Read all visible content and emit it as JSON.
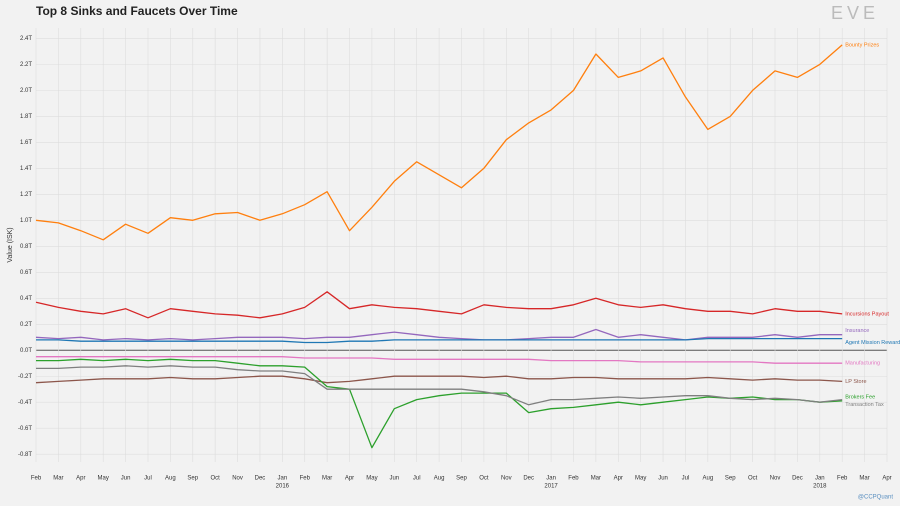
{
  "chart_data": {
    "type": "line",
    "title": "Top 8 Sinks and Faucets Over Time",
    "ylabel": "Value (ISK)",
    "logo": "EVE",
    "credit": "@CCPQuant",
    "categories": [
      "Feb",
      "Mar",
      "Apr",
      "May",
      "Jun",
      "Jul",
      "Aug",
      "Sep",
      "Oct",
      "Nov",
      "Dec",
      "Jan",
      "Feb",
      "Mar",
      "Apr",
      "May",
      "Jun",
      "Jul",
      "Aug",
      "Sep",
      "Oct",
      "Nov",
      "Dec",
      "Jan",
      "Feb",
      "Mar",
      "Apr",
      "May",
      "Jun",
      "Jul",
      "Aug",
      "Sep",
      "Oct",
      "Nov",
      "Dec",
      "Jan",
      "Feb",
      "Mar",
      "Apr"
    ],
    "years": [
      {
        "index": 11,
        "label": "2016"
      },
      {
        "index": 23,
        "label": "2017"
      },
      {
        "index": 35,
        "label": "2018"
      }
    ],
    "ylim": [
      -0.86,
      2.48
    ],
    "yticks": [
      {
        "value": -0.8,
        "label": "-0.8T"
      },
      {
        "value": -0.6,
        "label": "-0.6T"
      },
      {
        "value": -0.4,
        "label": "-0.4T"
      },
      {
        "value": -0.2,
        "label": "-0.2T"
      },
      {
        "value": 0,
        "label": "0.0T"
      },
      {
        "value": 0.2,
        "label": "0.2T"
      },
      {
        "value": 0.4,
        "label": "0.4T"
      },
      {
        "value": 0.6,
        "label": "0.6T"
      },
      {
        "value": 0.8,
        "label": "0.8T"
      },
      {
        "value": 1.0,
        "label": "1.0T"
      },
      {
        "value": 1.2,
        "label": "1.2T"
      },
      {
        "value": 1.4,
        "label": "1.4T"
      },
      {
        "value": 1.6,
        "label": "1.6T"
      },
      {
        "value": 1.8,
        "label": "1.8T"
      },
      {
        "value": 2.0,
        "label": "2.0T"
      },
      {
        "value": 2.2,
        "label": "2.2T"
      },
      {
        "value": 2.4,
        "label": "2.4T"
      }
    ],
    "grid": true,
    "series": [
      {
        "name": "Bounty Prizes",
        "color": "#ff7f0e",
        "values": [
          1.0,
          0.98,
          0.92,
          0.85,
          0.97,
          0.9,
          1.02,
          1.0,
          1.05,
          1.06,
          1.0,
          1.05,
          1.12,
          1.22,
          0.92,
          1.1,
          1.3,
          1.45,
          1.35,
          1.25,
          1.4,
          1.62,
          1.75,
          1.85,
          2.0,
          2.28,
          2.1,
          2.15,
          2.25,
          1.95,
          1.7,
          1.8,
          2.0,
          2.15,
          2.1,
          2.2,
          2.35,
          null,
          null
        ]
      },
      {
        "name": "Incursions Payout",
        "color": "#d62728",
        "values": [
          0.37,
          0.33,
          0.3,
          0.28,
          0.32,
          0.25,
          0.32,
          0.3,
          0.28,
          0.27,
          0.25,
          0.28,
          0.33,
          0.45,
          0.32,
          0.35,
          0.33,
          0.32,
          0.3,
          0.28,
          0.35,
          0.33,
          0.32,
          0.32,
          0.35,
          0.4,
          0.35,
          0.33,
          0.35,
          0.32,
          0.3,
          0.3,
          0.28,
          0.32,
          0.3,
          0.3,
          0.28,
          null,
          null
        ]
      },
      {
        "name": "Insurance",
        "color": "#9467bd",
        "values": [
          0.1,
          0.09,
          0.1,
          0.08,
          0.09,
          0.08,
          0.09,
          0.08,
          0.09,
          0.1,
          0.1,
          0.1,
          0.09,
          0.1,
          0.1,
          0.12,
          0.14,
          0.12,
          0.1,
          0.09,
          0.08,
          0.08,
          0.09,
          0.1,
          0.1,
          0.16,
          0.1,
          0.12,
          0.1,
          0.08,
          0.1,
          0.1,
          0.1,
          0.12,
          0.1,
          0.12,
          0.12,
          null,
          null
        ]
      },
      {
        "name": "Agent Mission Rewards",
        "color": "#1f77b4",
        "values": [
          0.08,
          0.08,
          0.07,
          0.07,
          0.07,
          0.07,
          0.07,
          0.07,
          0.07,
          0.07,
          0.07,
          0.07,
          0.06,
          0.06,
          0.07,
          0.07,
          0.08,
          0.08,
          0.08,
          0.08,
          0.08,
          0.08,
          0.08,
          0.08,
          0.08,
          0.08,
          0.08,
          0.08,
          0.08,
          0.08,
          0.09,
          0.09,
          0.09,
          0.09,
          0.09,
          0.09,
          0.09,
          null,
          null
        ]
      },
      {
        "name": "Manufacturing",
        "color": "#e377c2",
        "values": [
          -0.05,
          -0.05,
          -0.05,
          -0.05,
          -0.05,
          -0.05,
          -0.05,
          -0.05,
          -0.05,
          -0.05,
          -0.05,
          -0.05,
          -0.06,
          -0.06,
          -0.06,
          -0.06,
          -0.07,
          -0.07,
          -0.07,
          -0.07,
          -0.07,
          -0.07,
          -0.07,
          -0.08,
          -0.08,
          -0.08,
          -0.08,
          -0.09,
          -0.09,
          -0.09,
          -0.09,
          -0.09,
          -0.09,
          -0.1,
          -0.1,
          -0.1,
          -0.1,
          null,
          null
        ]
      },
      {
        "name": "LP Store",
        "color": "#8c564b",
        "values": [
          -0.25,
          -0.24,
          -0.23,
          -0.22,
          -0.22,
          -0.22,
          -0.21,
          -0.22,
          -0.22,
          -0.21,
          -0.2,
          -0.2,
          -0.22,
          -0.25,
          -0.24,
          -0.22,
          -0.2,
          -0.2,
          -0.2,
          -0.2,
          -0.21,
          -0.2,
          -0.22,
          -0.22,
          -0.21,
          -0.21,
          -0.22,
          -0.22,
          -0.22,
          -0.22,
          -0.21,
          -0.22,
          -0.23,
          -0.22,
          -0.23,
          -0.23,
          -0.24,
          null,
          null
        ]
      },
      {
        "name": "Brokers Fee",
        "color": "#2ca02c",
        "values": [
          -0.08,
          -0.08,
          -0.07,
          -0.08,
          -0.07,
          -0.08,
          -0.07,
          -0.08,
          -0.08,
          -0.1,
          -0.12,
          -0.12,
          -0.13,
          -0.28,
          -0.3,
          -0.75,
          -0.45,
          -0.38,
          -0.35,
          -0.33,
          -0.33,
          -0.33,
          -0.48,
          -0.45,
          -0.44,
          -0.42,
          -0.4,
          -0.42,
          -0.4,
          -0.38,
          -0.36,
          -0.37,
          -0.36,
          -0.38,
          -0.38,
          -0.4,
          -0.39,
          null,
          null
        ]
      },
      {
        "name": "Transaction Tax",
        "color": "#7f7f7f",
        "values": [
          -0.14,
          -0.14,
          -0.13,
          -0.13,
          -0.12,
          -0.13,
          -0.12,
          -0.13,
          -0.13,
          -0.15,
          -0.16,
          -0.16,
          -0.18,
          -0.3,
          -0.3,
          -0.3,
          -0.3,
          -0.3,
          -0.3,
          -0.3,
          -0.32,
          -0.35,
          -0.42,
          -0.38,
          -0.38,
          -0.37,
          -0.36,
          -0.37,
          -0.36,
          -0.35,
          -0.35,
          -0.37,
          -0.38,
          -0.37,
          -0.38,
          -0.4,
          -0.38,
          null,
          null
        ]
      }
    ]
  }
}
